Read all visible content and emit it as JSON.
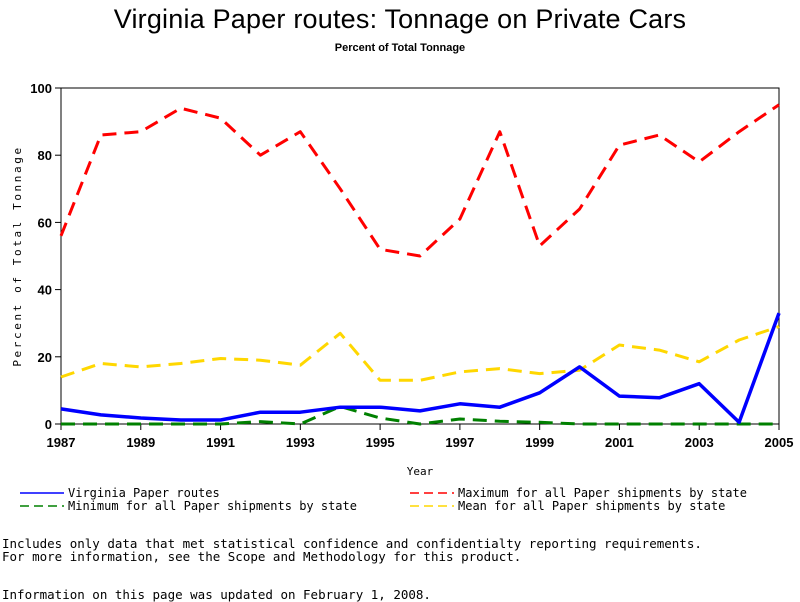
{
  "page": {
    "notes": [
      "Includes only data that met statistical confidence and confidentialty reporting requirements.",
      "For more information, see the Scope and Methodology for this product."
    ],
    "updated": "Information on this page was updated on February 1, 2008."
  },
  "chart_data": {
    "type": "line",
    "title": "Virginia Paper routes: Tonnage on Private Cars",
    "subtitle": "Percent of Total Tonnage",
    "xlabel": "Year",
    "ylabel": "Percent of Total Tonnage",
    "xlim": [
      1987,
      2005
    ],
    "ylim": [
      0,
      100
    ],
    "x_ticks": [
      1987,
      1989,
      1991,
      1993,
      1995,
      1997,
      1999,
      2001,
      2003,
      2005
    ],
    "y_ticks": [
      0,
      20,
      40,
      60,
      80,
      100
    ],
    "grid": false,
    "legend_position": "bottom",
    "x": [
      1987,
      1988,
      1989,
      1990,
      1991,
      1992,
      1993,
      1994,
      1995,
      1996,
      1997,
      1998,
      1999,
      2000,
      2001,
      2002,
      2003,
      2004,
      2005
    ],
    "series": [
      {
        "name": "Virginia Paper routes",
        "color": "#0000ff",
        "style": "solid",
        "values": [
          4.5,
          2.7,
          1.8,
          1.2,
          1.2,
          3.5,
          3.5,
          5.0,
          5.0,
          3.9,
          6.0,
          5.0,
          9.3,
          17.0,
          8.3,
          7.8,
          12.0,
          0.5,
          33.0
        ]
      },
      {
        "name": "Maximum for all Paper shipments by state",
        "color": "#ff0000",
        "style": "dashed",
        "values": [
          56,
          86,
          87,
          94,
          91,
          80,
          87,
          70,
          52,
          50,
          61,
          87,
          53,
          64,
          83,
          86,
          78,
          87,
          95
        ]
      },
      {
        "name": "Minimum for all Paper shipments by state",
        "color": "#008000",
        "style": "dashed",
        "values": [
          0,
          0,
          0,
          0,
          0,
          0.7,
          0,
          5.2,
          1.8,
          0,
          1.5,
          0.8,
          0.5,
          0,
          0,
          0,
          0,
          0,
          0
        ]
      },
      {
        "name": "Mean for all Paper shipments by state",
        "color": "#ffd700",
        "style": "dashed",
        "values": [
          14,
          18,
          17,
          18,
          19.5,
          19,
          17.5,
          27,
          13,
          13,
          15.5,
          16.5,
          15,
          16,
          23.5,
          22,
          18.5,
          25,
          29
        ]
      }
    ]
  }
}
